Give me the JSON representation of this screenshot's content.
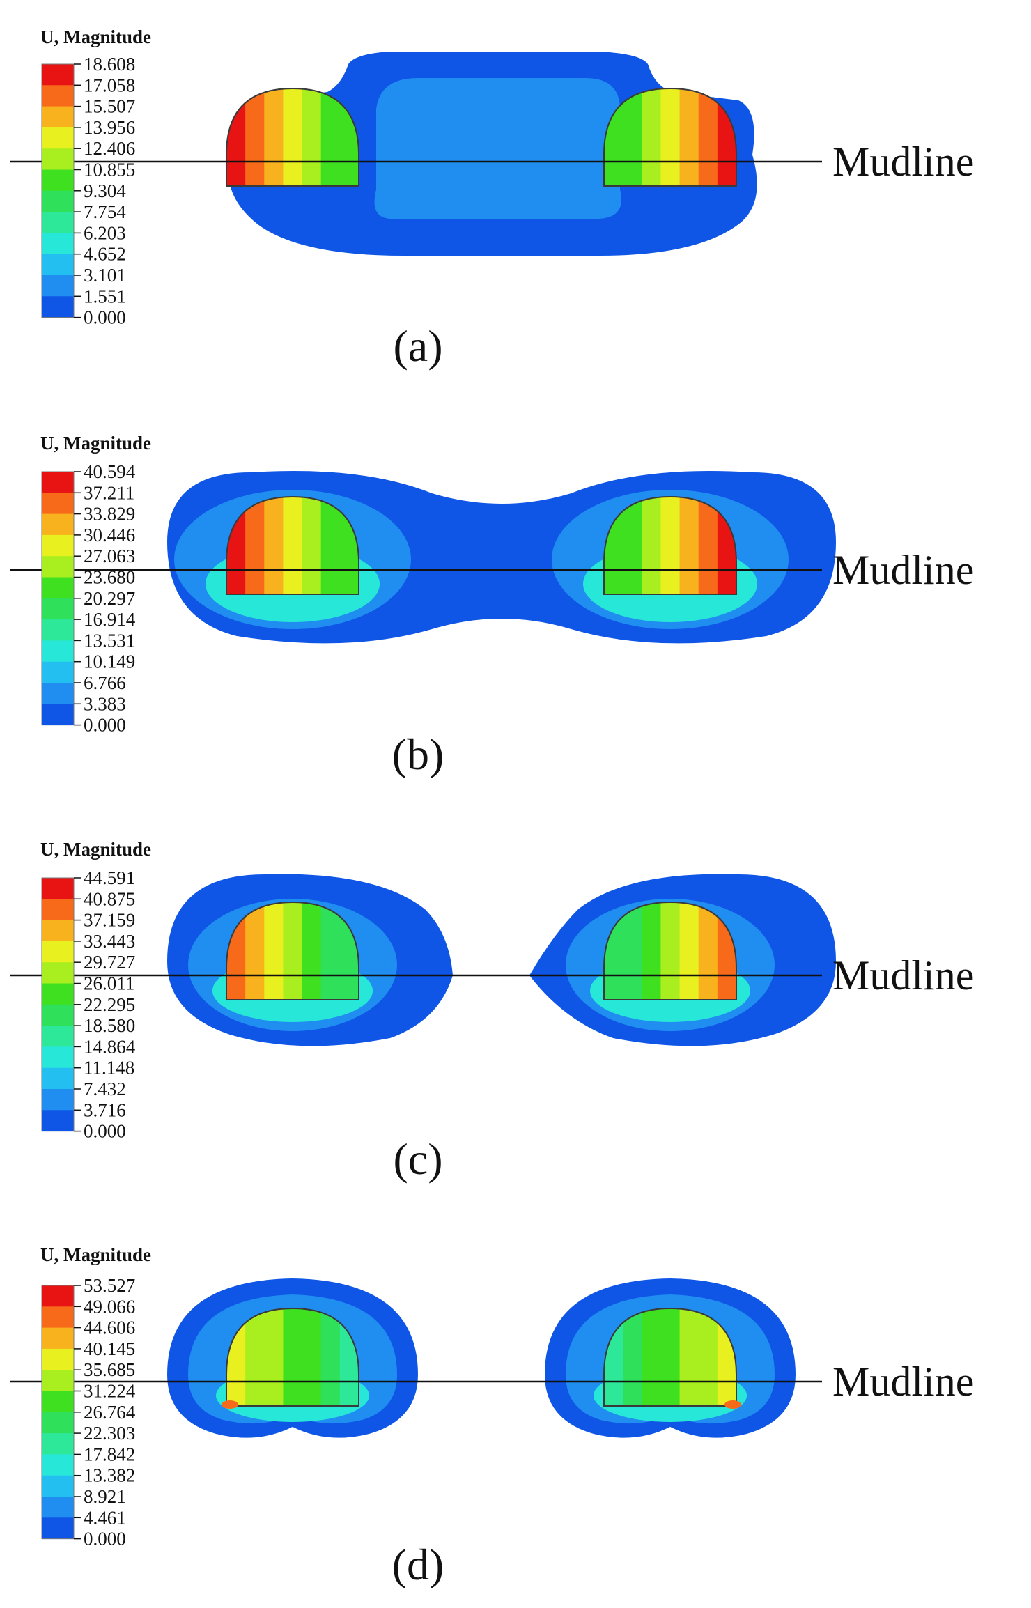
{
  "figure": {
    "legend_title": "U, Magnitude",
    "mudline_label": "Mudline",
    "colors": {
      "scale": [
        "#ffffff",
        "#0f56e6",
        "#1f8ef0",
        "#22bff0",
        "#27e8d8",
        "#2ee89a",
        "#2ee05a",
        "#3ee020",
        "#a9ef1f",
        "#e8f020",
        "#f7b21e",
        "#f76a1a",
        "#e81414"
      ],
      "ground_line": "#111111",
      "pile_edge": "#3a3a3a"
    },
    "panels": [
      {
        "label": "(a)",
        "legend_values": [
          "18.608",
          "17.058",
          "15.507",
          "13.956",
          "12.406",
          "10.855",
          "9.304",
          "7.754",
          "6.203",
          "4.652",
          "3.101",
          "1.551",
          "0.000"
        ]
      },
      {
        "label": "(b)",
        "legend_values": [
          "40.594",
          "37.211",
          "33.829",
          "30.446",
          "27.063",
          "23.680",
          "20.297",
          "16.914",
          "13.531",
          "10.149",
          "6.766",
          "3.383",
          "0.000"
        ]
      },
      {
        "label": "(c)",
        "legend_values": [
          "44.591",
          "40.875",
          "37.159",
          "33.443",
          "29.727",
          "26.011",
          "22.295",
          "18.580",
          "14.864",
          "11.148",
          "7.432",
          "3.716",
          "0.000"
        ]
      },
      {
        "label": "(d)",
        "legend_values": [
          "53.527",
          "49.066",
          "44.606",
          "40.145",
          "35.685",
          "31.224",
          "26.764",
          "22.303",
          "17.842",
          "13.382",
          "8.921",
          "4.461",
          "0.000"
        ]
      }
    ]
  }
}
